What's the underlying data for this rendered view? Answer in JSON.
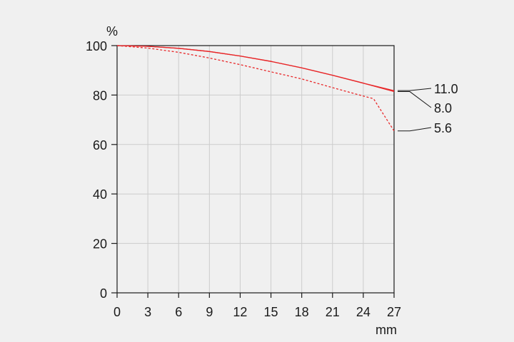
{
  "chart_data": {
    "type": "line",
    "title": "",
    "ylabel": "%",
    "xlabel": "mm",
    "xlim": [
      0,
      27
    ],
    "ylim": [
      0,
      100
    ],
    "x_ticks": [
      "0",
      "3",
      "6",
      "9",
      "12",
      "15",
      "18",
      "21",
      "24",
      "27"
    ],
    "y_ticks": [
      "0",
      "20",
      "40",
      "60",
      "80",
      "100"
    ],
    "grid": true,
    "legend_placement": "right",
    "colors": {
      "series": "#e8282a",
      "grid": "#cccccc",
      "axis": "#1a1a1a",
      "background": "#f0f0f0"
    },
    "series": [
      {
        "name": "11.0",
        "style": "solid",
        "x": [
          0,
          3,
          6,
          9,
          12,
          15,
          18,
          21,
          24,
          27
        ],
        "y": [
          100,
          99.7,
          98.9,
          97.6,
          95.8,
          93.6,
          91.0,
          88.0,
          84.8,
          81.8
        ]
      },
      {
        "name": "8.0",
        "style": "solid",
        "x": [
          0,
          3,
          6,
          9,
          12,
          15,
          18,
          21,
          24,
          27
        ],
        "y": [
          100,
          99.7,
          98.9,
          97.6,
          95.8,
          93.6,
          91.0,
          88.0,
          84.8,
          81.4
        ]
      },
      {
        "name": "5.6",
        "style": "dashed",
        "x": [
          0,
          3,
          6,
          9,
          12,
          15,
          18,
          21,
          24,
          25,
          26,
          27
        ],
        "y": [
          100,
          99.0,
          97.3,
          95.0,
          92.3,
          89.4,
          86.5,
          83.0,
          79.6,
          78.5,
          72.0,
          65.5
        ]
      }
    ]
  }
}
